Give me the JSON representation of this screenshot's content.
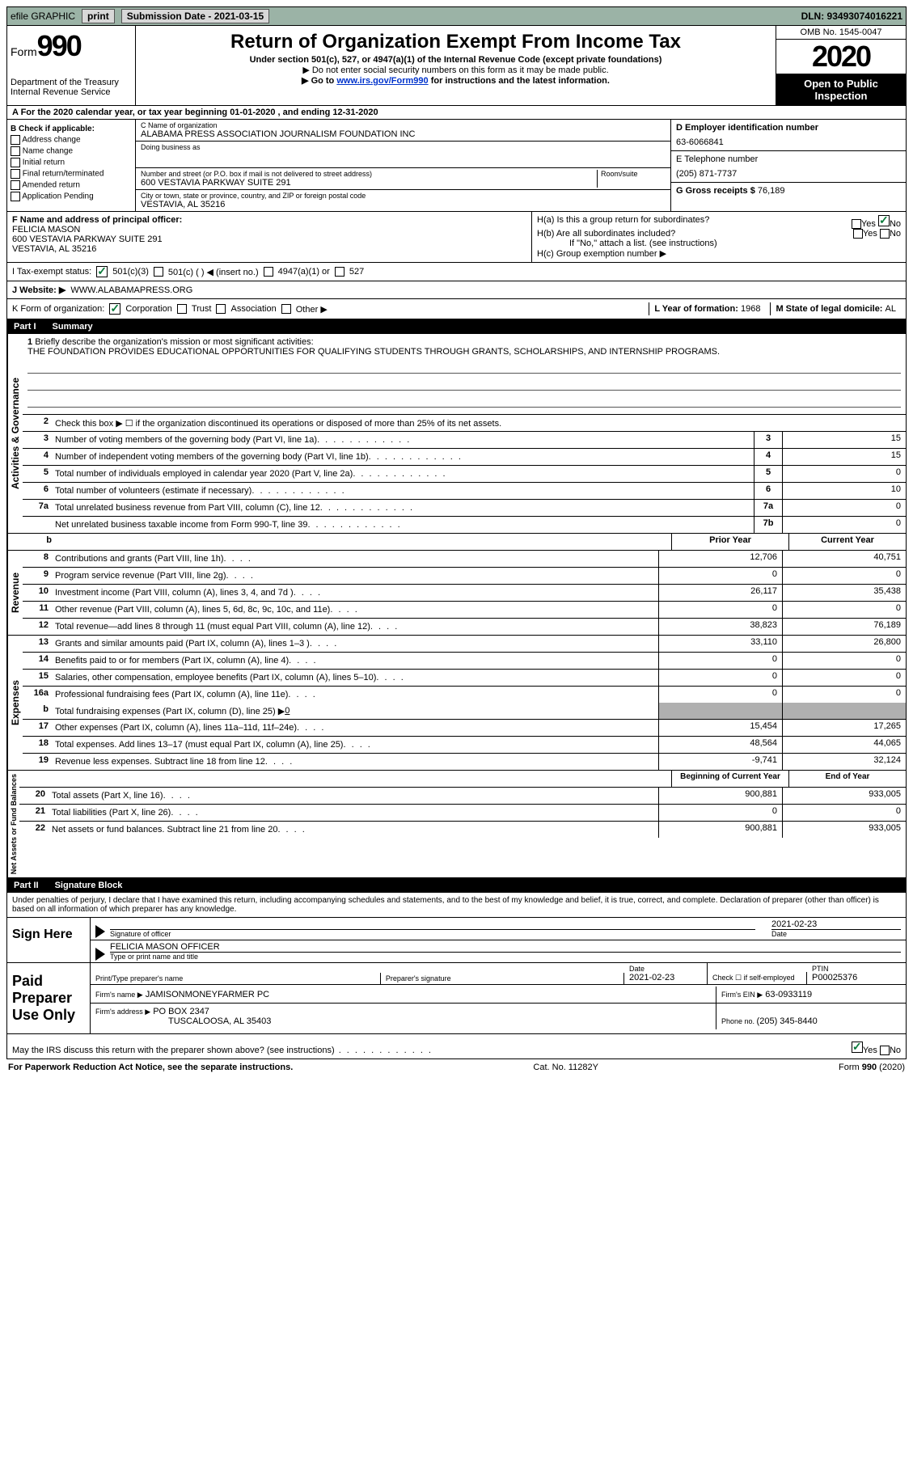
{
  "topbar": {
    "efile": "efile GRAPHIC",
    "print": "print",
    "sub_label": "Submission Date - ",
    "sub_date": "2021-03-15",
    "dln": "DLN: 93493074016221"
  },
  "header": {
    "form_label": "Form",
    "form_num": "990",
    "dept": "Department of the Treasury\nInternal Revenue Service",
    "title": "Return of Organization Exempt From Income Tax",
    "sub1": "Under section 501(c), 527, or 4947(a)(1) of the Internal Revenue Code (except private foundations)",
    "sub2": "▶ Do not enter social security numbers on this form as it may be made public.",
    "sub3_pre": "▶ Go to ",
    "sub3_link": "www.irs.gov/Form990",
    "sub3_post": " for instructions and the latest information.",
    "omb": "OMB No. 1545-0047",
    "year": "2020",
    "open": "Open to Public Inspection"
  },
  "row_a": "A For the 2020 calendar year, or tax year beginning 01-01-2020   , and ending 12-31-2020",
  "col_b": {
    "hdr": "B Check if applicable:",
    "items": [
      "Address change",
      "Name change",
      "Initial return",
      "Final return/terminated",
      "Amended return",
      "Application Pending"
    ]
  },
  "col_c": {
    "name_label": "C Name of organization",
    "name": "ALABAMA PRESS ASSOCIATION JOURNALISM FOUNDATION INC",
    "dba_label": "Doing business as",
    "dba": "",
    "addr_label": "Number and street (or P.O. box if mail is not delivered to street address)",
    "room_label": "Room/suite",
    "addr": "600 VESTAVIA PARKWAY SUITE 291",
    "city_label": "City or town, state or province, country, and ZIP or foreign postal code",
    "city": "VESTAVIA, AL  35216"
  },
  "col_d": {
    "ein_label": "D Employer identification number",
    "ein": "63-6066841",
    "tel_label": "E Telephone number",
    "tel": "(205) 871-7737",
    "gross_label": "G Gross receipts $ ",
    "gross": "76,189"
  },
  "fg": {
    "f_label": "F  Name and address of principal officer:",
    "f_name": "FELICIA MASON",
    "f_addr1": "600 VESTAVIA PARKWAY SUITE 291",
    "f_addr2": "VESTAVIA, AL  35216",
    "ha": "H(a)  Is this a group return for subordinates?",
    "hb": "H(b)  Are all subordinates included?",
    "hb_note": "If \"No,\" attach a list. (see instructions)",
    "hc": "H(c)  Group exemption number ▶"
  },
  "tax": {
    "label": "I  Tax-exempt status:",
    "c3": "501(c)(3)",
    "c": "501(c) (  ) ◀ (insert no.)",
    "a1": "4947(a)(1) or",
    "527": "527"
  },
  "web": {
    "label": "J  Website: ▶",
    "val": "WWW.ALABAMAPRESS.ORG"
  },
  "korg": {
    "k": "K Form of organization:",
    "corp": "Corporation",
    "trust": "Trust",
    "assoc": "Association",
    "other": "Other ▶",
    "l_label": "L Year of formation: ",
    "l_val": "1968",
    "m_label": "M State of legal domicile: ",
    "m_val": "AL"
  },
  "part1": {
    "hdr_num": "Part I",
    "hdr_title": "Summary",
    "l1": "Briefly describe the organization's mission or most significant activities:",
    "mission": "THE FOUNDATION PROVIDES EDUCATIONAL OPPORTUNITIES FOR QUALIFYING STUDENTS THROUGH GRANTS, SCHOLARSHIPS, AND INTERNSHIP PROGRAMS.",
    "l2": "Check this box ▶ ☐  if the organization discontinued its operations or disposed of more than 25% of its net assets.",
    "rows_simple": [
      {
        "n": "3",
        "d": "Number of voting members of the governing body (Part VI, line 1a)",
        "box": "3",
        "v": "15"
      },
      {
        "n": "4",
        "d": "Number of independent voting members of the governing body (Part VI, line 1b)",
        "box": "4",
        "v": "15"
      },
      {
        "n": "5",
        "d": "Total number of individuals employed in calendar year 2020 (Part V, line 2a)",
        "box": "5",
        "v": "0"
      },
      {
        "n": "6",
        "d": "Total number of volunteers (estimate if necessary)",
        "box": "6",
        "v": "10"
      },
      {
        "n": "7a",
        "d": "Total unrelated business revenue from Part VIII, column (C), line 12",
        "box": "7a",
        "v": "0"
      },
      {
        "n": "",
        "d": "Net unrelated business taxable income from Form 990-T, line 39",
        "box": "7b",
        "v": "0"
      }
    ],
    "py": "Prior Year",
    "cy": "Current Year",
    "b": "b"
  },
  "revenue": {
    "tab": "Revenue",
    "rows": [
      {
        "n": "8",
        "d": "Contributions and grants (Part VIII, line 1h)",
        "py": "12,706",
        "cy": "40,751"
      },
      {
        "n": "9",
        "d": "Program service revenue (Part VIII, line 2g)",
        "py": "0",
        "cy": "0"
      },
      {
        "n": "10",
        "d": "Investment income (Part VIII, column (A), lines 3, 4, and 7d )",
        "py": "26,117",
        "cy": "35,438"
      },
      {
        "n": "11",
        "d": "Other revenue (Part VIII, column (A), lines 5, 6d, 8c, 9c, 10c, and 11e)",
        "py": "0",
        "cy": "0"
      },
      {
        "n": "12",
        "d": "Total revenue—add lines 8 through 11 (must equal Part VIII, column (A), line 12)",
        "py": "38,823",
        "cy": "76,189"
      }
    ]
  },
  "expenses": {
    "tab": "Expenses",
    "rows": [
      {
        "n": "13",
        "d": "Grants and similar amounts paid (Part IX, column (A), lines 1–3 )",
        "py": "33,110",
        "cy": "26,800"
      },
      {
        "n": "14",
        "d": "Benefits paid to or for members (Part IX, column (A), line 4)",
        "py": "0",
        "cy": "0"
      },
      {
        "n": "15",
        "d": "Salaries, other compensation, employee benefits (Part IX, column (A), lines 5–10)",
        "py": "0",
        "cy": "0"
      },
      {
        "n": "16a",
        "d": "Professional fundraising fees (Part IX, column (A), line 11e)",
        "py": "0",
        "cy": "0"
      }
    ],
    "b": {
      "n": "b",
      "d": "Total fundraising expenses (Part IX, column (D), line 25) ▶",
      "v": "0"
    },
    "rows2": [
      {
        "n": "17",
        "d": "Other expenses (Part IX, column (A), lines 11a–11d, 11f–24e)",
        "py": "15,454",
        "cy": "17,265"
      },
      {
        "n": "18",
        "d": "Total expenses. Add lines 13–17 (must equal Part IX, column (A), line 25)",
        "py": "48,564",
        "cy": "44,065"
      },
      {
        "n": "19",
        "d": "Revenue less expenses. Subtract line 18 from line 12",
        "py": "-9,741",
        "cy": "32,124"
      }
    ]
  },
  "netassets": {
    "tab": "Net Assets or Fund Balances",
    "hdr_py": "Beginning of Current Year",
    "hdr_cy": "End of Year",
    "rows": [
      {
        "n": "20",
        "d": "Total assets (Part X, line 16)",
        "py": "900,881",
        "cy": "933,005"
      },
      {
        "n": "21",
        "d": "Total liabilities (Part X, line 26)",
        "py": "0",
        "cy": "0"
      },
      {
        "n": "22",
        "d": "Net assets or fund balances. Subtract line 21 from line 20",
        "py": "900,881",
        "cy": "933,005"
      }
    ]
  },
  "part2": {
    "hdr_num": "Part II",
    "hdr_title": "Signature Block",
    "intro": "Under penalties of perjury, I declare that I have examined this return, including accompanying schedules and statements, and to the best of my knowledge and belief, it is true, correct, and complete. Declaration of preparer (other than officer) is based on all information of which preparer has any knowledge.",
    "sign_here": "Sign Here",
    "sig_officer": "Signature of officer",
    "sig_date_label": "Date",
    "sig_date": "2021-02-23",
    "sig_name": "FELICIA MASON  OFFICER",
    "sig_name_label": "Type or print name and title",
    "paid": "Paid Preparer Use Only",
    "prep_name_label": "Print/Type preparer's name",
    "prep_sig_label": "Preparer's signature",
    "prep_date_label": "Date",
    "prep_date": "2021-02-23",
    "self_emp": "Check ☐ if self-employed",
    "ptin_label": "PTIN",
    "ptin": "P00025376",
    "firm_name_label": "Firm's name     ▶",
    "firm_name": "JAMISONMONEYFARMER PC",
    "firm_ein_label": "Firm's EIN ▶",
    "firm_ein": "63-0933119",
    "firm_addr_label": "Firm's address ▶",
    "firm_addr1": "PO BOX 2347",
    "firm_addr2": "TUSCALOOSA, AL  35403",
    "phone_label": "Phone no. ",
    "phone": "(205) 345-8440",
    "discuss": "May the IRS discuss this return with the preparer shown above? (see instructions)",
    "yes": "Yes",
    "no": "No"
  },
  "footer": {
    "left": "For Paperwork Reduction Act Notice, see the separate instructions.",
    "mid": "Cat. No. 11282Y",
    "right": "Form 990 (2020)"
  }
}
